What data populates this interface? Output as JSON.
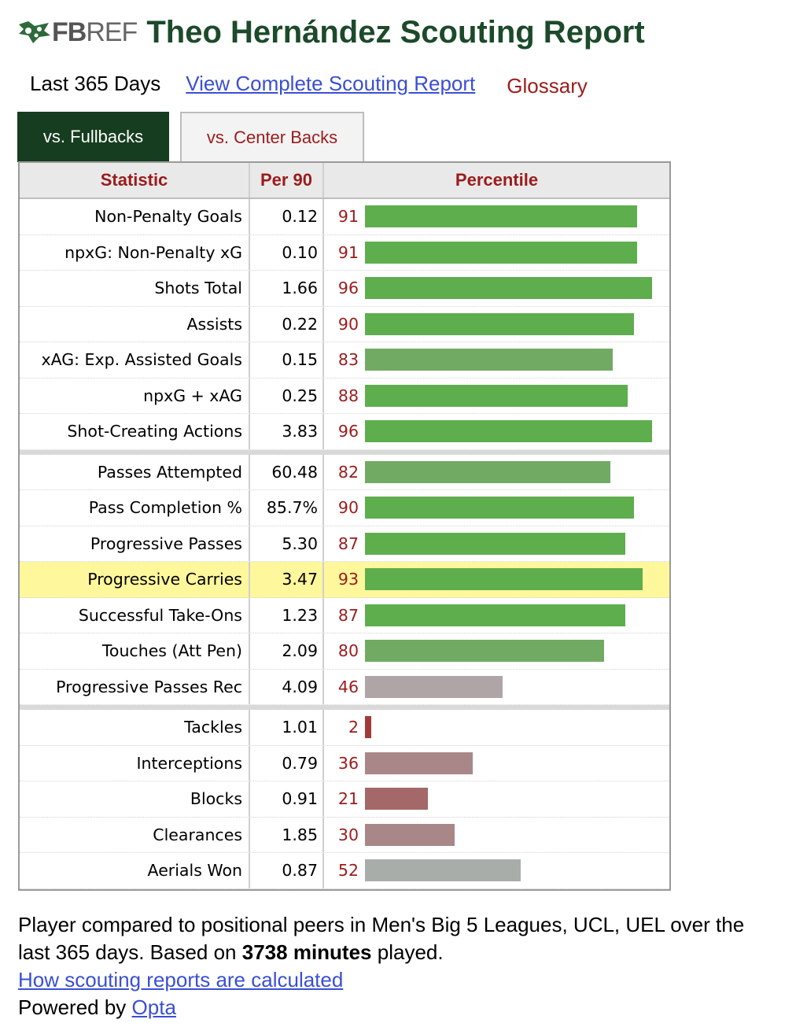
{
  "header": {
    "logo_fb": "FB",
    "logo_ref": "REF",
    "title": "Theo Hernández Scouting Report"
  },
  "subnav": {
    "period": "Last 365 Days",
    "full_report_link": "View Complete Scouting Report",
    "glossary": "Glossary"
  },
  "tabs": [
    {
      "label": "vs. Fullbacks",
      "active": true
    },
    {
      "label": "vs. Center Backs",
      "active": false
    }
  ],
  "table": {
    "headers": {
      "statistic": "Statistic",
      "per90": "Per 90",
      "percentile": "Percentile"
    },
    "groups": [
      [
        {
          "stat": "Non-Penalty Goals",
          "per90": "0.12",
          "percentile": 91
        },
        {
          "stat": "npxG: Non-Penalty xG",
          "per90": "0.10",
          "percentile": 91
        },
        {
          "stat": "Shots Total",
          "per90": "1.66",
          "percentile": 96
        },
        {
          "stat": "Assists",
          "per90": "0.22",
          "percentile": 90
        },
        {
          "stat": "xAG: Exp. Assisted Goals",
          "per90": "0.15",
          "percentile": 83
        },
        {
          "stat": "npxG + xAG",
          "per90": "0.25",
          "percentile": 88
        },
        {
          "stat": "Shot-Creating Actions",
          "per90": "3.83",
          "percentile": 96
        }
      ],
      [
        {
          "stat": "Passes Attempted",
          "per90": "60.48",
          "percentile": 82
        },
        {
          "stat": "Pass Completion %",
          "per90": "85.7%",
          "percentile": 90
        },
        {
          "stat": "Progressive Passes",
          "per90": "5.30",
          "percentile": 87
        },
        {
          "stat": "Progressive Carries",
          "per90": "3.47",
          "percentile": 93,
          "highlight": true
        },
        {
          "stat": "Successful Take-Ons",
          "per90": "1.23",
          "percentile": 87
        },
        {
          "stat": "Touches (Att Pen)",
          "per90": "2.09",
          "percentile": 80
        },
        {
          "stat": "Progressive Passes Rec",
          "per90": "4.09",
          "percentile": 46
        }
      ],
      [
        {
          "stat": "Tackles",
          "per90": "1.01",
          "percentile": 2
        },
        {
          "stat": "Interceptions",
          "per90": "0.79",
          "percentile": 36
        },
        {
          "stat": "Blocks",
          "per90": "0.91",
          "percentile": 21
        },
        {
          "stat": "Clearances",
          "per90": "1.85",
          "percentile": 30
        },
        {
          "stat": "Aerials Won",
          "per90": "0.87",
          "percentile": 52
        }
      ]
    ]
  },
  "colors": {
    "bar_high": "#5eae4e",
    "bar_good": "#71ab63",
    "bar_neutral_warm": "#b0a5a6",
    "bar_neutral_cool": "#a9adaa",
    "bar_low": "#a98788",
    "bar_lower": "#a56868",
    "bar_lowest": "#a33a3a",
    "title_green": "#1c4a2a",
    "accent_red": "#9b1c1c",
    "link_blue": "#3a4fd4",
    "highlight": "#fff79b"
  },
  "footer": {
    "line1_prefix": "Player compared to positional peers in Men's Big 5 Leagues, UCL, UEL over the last 365 days. Based on",
    "minutes": "3738 minutes",
    "line1_suffix": "played.",
    "how_link": "How scouting reports are calculated",
    "powered_by": "Powered by",
    "opta_link": "Opta"
  }
}
